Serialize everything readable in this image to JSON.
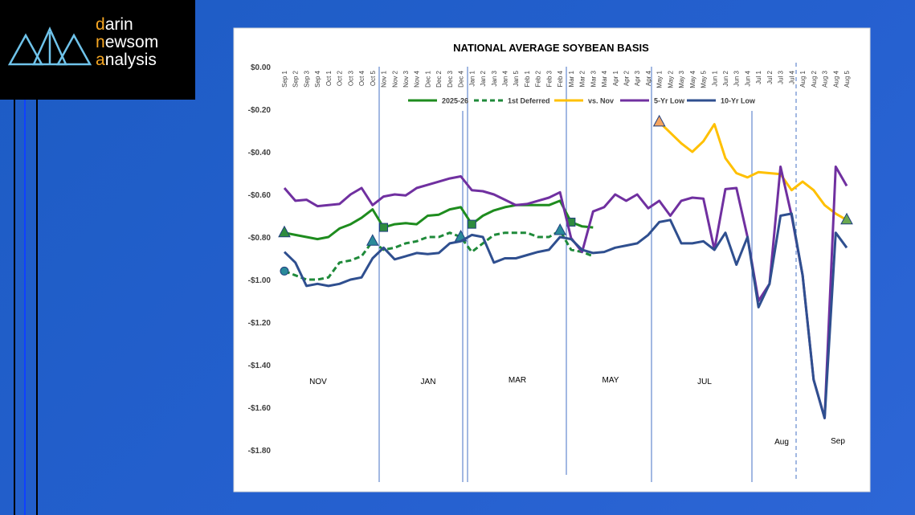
{
  "logo": {
    "lines": [
      "darin",
      "newsom",
      "analysis"
    ]
  },
  "chart_data": {
    "type": "line",
    "title": "NATIONAL AVERAGE SOYBEAN BASIS",
    "categories": [
      "Sep 1",
      "Sep 2",
      "Sep 3",
      "Sep 4",
      "Oct 1",
      "Oct 2",
      "Oct 3",
      "Oct 4",
      "Oct 5",
      "Nov 1",
      "Nov 2",
      "Nov 3",
      "Nov 4",
      "Dec 1",
      "Dec 2",
      "Dec 3",
      "Dec 4",
      "Jan 1",
      "Jan 2",
      "Jan 3",
      "Jan 4",
      "Jan 5",
      "Feb 1",
      "Feb 2",
      "Feb 3",
      "Feb 4",
      "Mar 1",
      "Mar 2",
      "Mar 3",
      "Mar 4",
      "Apr 1",
      "Apr 2",
      "Apr 3",
      "Apr 4",
      "May 1",
      "May 2",
      "May 3",
      "May 4",
      "May 5",
      "Jun 1",
      "Jun 2",
      "Jun 3",
      "Jun 4",
      "Jul 1",
      "Jul 2",
      "Jul 3",
      "Jul 4",
      "Aug 1",
      "Aug 2",
      "Aug 3",
      "Aug 4",
      "Aug 5"
    ],
    "ylim": [
      -1.8,
      0
    ],
    "yticks": [
      {
        "value": 0,
        "label": "$0.00"
      },
      {
        "value": -0.2,
        "label": "-$0.20"
      },
      {
        "value": -0.4,
        "label": "-$0.40"
      },
      {
        "value": -0.6,
        "label": "-$0.60"
      },
      {
        "value": -0.8,
        "label": "-$0.80"
      },
      {
        "value": -1.0,
        "label": "-$1.00"
      },
      {
        "value": -1.2,
        "label": "-$1.20"
      },
      {
        "value": -1.4,
        "label": "-$1.40"
      },
      {
        "value": -1.6,
        "label": "-$1.60"
      },
      {
        "value": -1.8,
        "label": "-$1.80"
      }
    ],
    "grid": false,
    "annotations": [
      "NOV",
      "JAN",
      "MAR",
      "MAY",
      "JUL",
      "Aug",
      "Sep"
    ],
    "series": [
      {
        "name": "2025-26",
        "color": "#1e8c1e",
        "dash": false,
        "values": [
          -0.78,
          -0.79,
          -0.8,
          -0.81,
          -0.8,
          -0.76,
          -0.74,
          -0.71,
          -0.67,
          -0.755,
          -0.74,
          -0.735,
          -0.74,
          -0.7,
          -0.695,
          -0.67,
          -0.66,
          -0.74,
          -0.7,
          -0.675,
          -0.66,
          -0.65,
          -0.65,
          -0.65,
          -0.65,
          -0.63,
          -0.73,
          -0.75,
          -0.755,
          null,
          null,
          null,
          null,
          null,
          null,
          null,
          null,
          null,
          null,
          null,
          null,
          null,
          null,
          null,
          null,
          null,
          null,
          null,
          null,
          null,
          null,
          null
        ],
        "markers": [
          {
            "index": 0,
            "shape": "triangle",
            "color": "#2e8b3e"
          },
          {
            "index": 9,
            "shape": "square",
            "color": "#2e8b3e"
          },
          {
            "index": 17,
            "shape": "square",
            "color": "#2e8b3e"
          },
          {
            "index": 26,
            "shape": "square",
            "color": "#2e8b3e"
          }
        ]
      },
      {
        "name": "1st Deferred",
        "color": "#1f8a3a",
        "dash": true,
        "values": [
          -0.96,
          -0.98,
          -1.0,
          -1.0,
          -0.99,
          -0.92,
          -0.91,
          -0.89,
          -0.82,
          -0.86,
          -0.85,
          -0.83,
          -0.82,
          -0.8,
          -0.8,
          -0.78,
          -0.8,
          -0.87,
          -0.83,
          -0.79,
          -0.78,
          -0.78,
          -0.78,
          -0.8,
          -0.8,
          -0.77,
          -0.86,
          -0.87,
          -0.89,
          null,
          null,
          null,
          null,
          null,
          null,
          null,
          null,
          null,
          null,
          null,
          null,
          null,
          null,
          null,
          null,
          null,
          null,
          null,
          null,
          null,
          null,
          null
        ],
        "markers": [
          {
            "index": 0,
            "shape": "circle",
            "color": "#2a8a9a"
          },
          {
            "index": 8,
            "shape": "triangle",
            "color": "#2a8a9a"
          },
          {
            "index": 16,
            "shape": "triangle",
            "color": "#2a8a9a"
          },
          {
            "index": 25,
            "shape": "triangle",
            "color": "#2a8a9a"
          }
        ]
      },
      {
        "name": "vs. Nov",
        "color": "#ffc000",
        "dash": false,
        "values": [
          null,
          null,
          null,
          null,
          null,
          null,
          null,
          null,
          null,
          null,
          null,
          null,
          null,
          null,
          null,
          null,
          null,
          null,
          null,
          null,
          null,
          null,
          null,
          null,
          null,
          null,
          null,
          null,
          null,
          null,
          null,
          null,
          null,
          null,
          -0.26,
          -0.31,
          -0.36,
          -0.4,
          -0.35,
          -0.27,
          -0.43,
          -0.5,
          -0.52,
          -0.495,
          -0.5,
          -0.505,
          -0.58,
          -0.54,
          -0.58,
          -0.65,
          -0.69,
          -0.72
        ],
        "markers": [
          {
            "index": 34,
            "shape": "triangle",
            "color": "#f4a460"
          },
          {
            "index": 51,
            "shape": "triangle",
            "color": "#6aa84f"
          }
        ]
      },
      {
        "name": "5-Yr Low",
        "color": "#7030a0",
        "dash": false,
        "values": [
          -0.57,
          -0.63,
          -0.625,
          -0.655,
          -0.65,
          -0.645,
          -0.6,
          -0.57,
          -0.65,
          -0.61,
          -0.6,
          -0.605,
          -0.57,
          -0.555,
          -0.54,
          -0.525,
          -0.515,
          -0.58,
          -0.585,
          -0.6,
          -0.625,
          -0.65,
          -0.645,
          -0.63,
          -0.615,
          -0.59,
          -0.805,
          -0.87,
          -0.68,
          -0.66,
          -0.6,
          -0.63,
          -0.6,
          -0.665,
          -0.63,
          -0.7,
          -0.63,
          -0.615,
          -0.62,
          -0.86,
          -0.575,
          -0.57,
          -0.8,
          -1.1,
          -1.02,
          -0.47,
          -0.7,
          -0.98,
          -1.47,
          -1.65,
          -0.47,
          -0.56
        ],
        "markers": []
      },
      {
        "name": "10-Yr Low",
        "color": "#2f4f8f",
        "dash": false,
        "values": [
          -0.87,
          -0.92,
          -1.03,
          -1.02,
          -1.03,
          -1.02,
          -1.0,
          -0.99,
          -0.9,
          -0.85,
          -0.905,
          -0.89,
          -0.875,
          -0.88,
          -0.875,
          -0.83,
          -0.82,
          -0.79,
          -0.8,
          -0.92,
          -0.9,
          -0.9,
          -0.885,
          -0.87,
          -0.86,
          -0.8,
          -0.81,
          -0.86,
          -0.875,
          -0.87,
          -0.85,
          -0.84,
          -0.83,
          -0.79,
          -0.73,
          -0.72,
          -0.83,
          -0.83,
          -0.82,
          -0.86,
          -0.78,
          -0.93,
          -0.8,
          -1.13,
          -1.02,
          -0.7,
          -0.69,
          -0.98,
          -1.47,
          -1.65,
          -0.78,
          -0.85
        ],
        "markers": []
      }
    ]
  }
}
